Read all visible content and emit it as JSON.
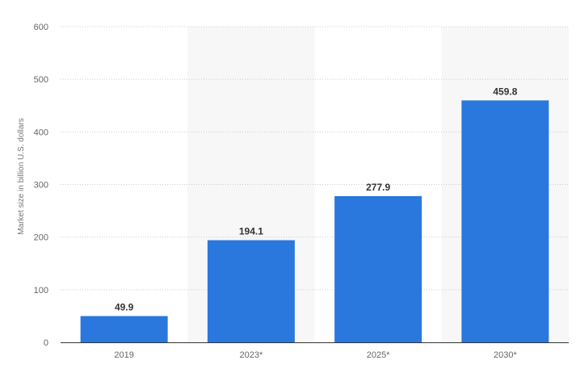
{
  "chart_data": {
    "type": "bar",
    "categories": [
      "2019",
      "2023*",
      "2025*",
      "2030*"
    ],
    "values": [
      49.9,
      194.1,
      277.9,
      459.8
    ],
    "value_labels": [
      "49.9",
      "194.1",
      "277.9",
      "459.8"
    ],
    "title": "",
    "xlabel": "",
    "ylabel": "Market size in billion U.S. dollars",
    "ylim": [
      0,
      600
    ],
    "yticks": [
      0,
      100,
      200,
      300,
      400,
      500,
      600
    ],
    "grid": true,
    "legend": "none",
    "colors": {
      "bar": "#2a77de",
      "band": "#f7f7f7",
      "grid": "#cccccc",
      "axis": "#333333"
    }
  }
}
